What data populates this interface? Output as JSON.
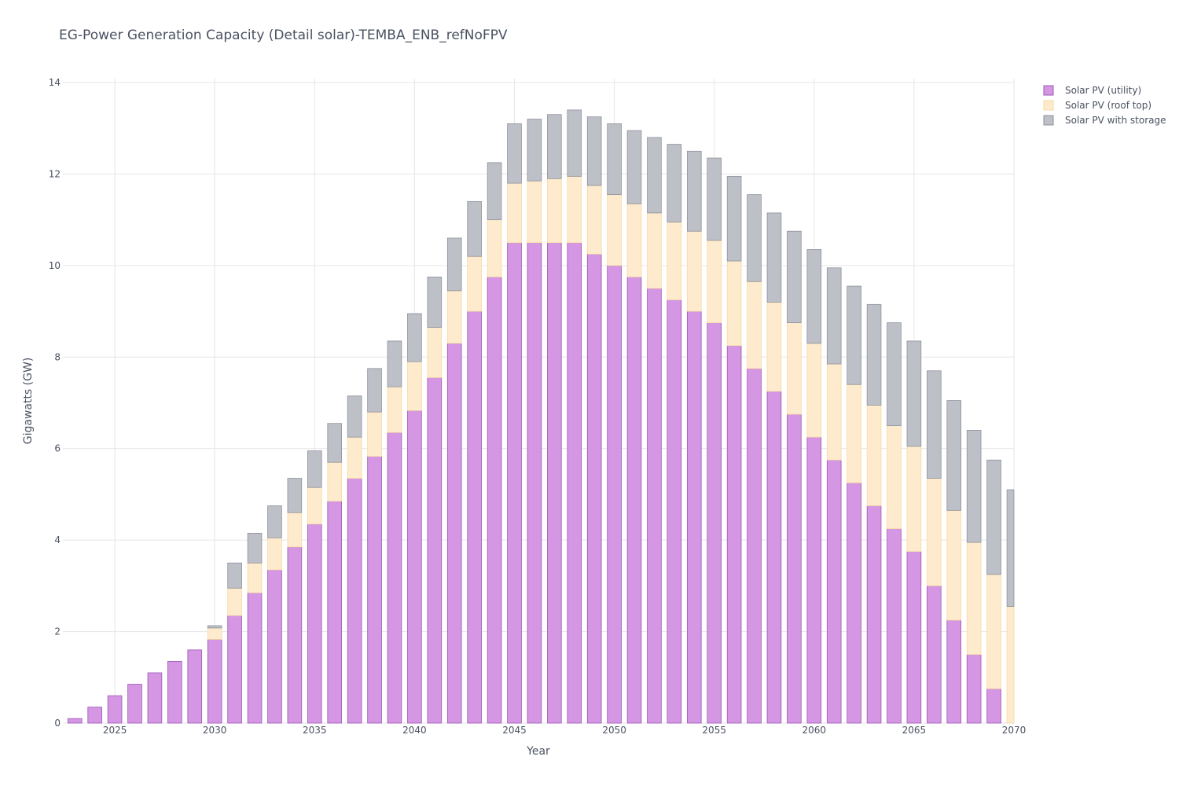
{
  "chart_data": {
    "type": "bar",
    "title": "EG-Power Generation Capacity (Detail solar)-TEMBA_ENB_refNoFPV",
    "xlabel": "Year",
    "ylabel": "Gigawatts (GW)",
    "barmode": "stacked",
    "ylim": [
      0,
      14
    ],
    "xlim": [
      2022.4,
      2070
    ],
    "x_ticks": [
      2025,
      2030,
      2035,
      2040,
      2045,
      2050,
      2055,
      2060,
      2065,
      2070
    ],
    "y_ticks": [
      0,
      2,
      4,
      6,
      8,
      10,
      12,
      14
    ],
    "grid": true,
    "legend_position": "top-right",
    "x": [
      2023,
      2024,
      2025,
      2026,
      2027,
      2028,
      2029,
      2030,
      2031,
      2032,
      2033,
      2034,
      2035,
      2036,
      2037,
      2038,
      2039,
      2040,
      2041,
      2042,
      2043,
      2044,
      2045,
      2046,
      2047,
      2048,
      2049,
      2050,
      2051,
      2052,
      2053,
      2054,
      2055,
      2056,
      2057,
      2058,
      2059,
      2060,
      2061,
      2062,
      2063,
      2064,
      2065,
      2066,
      2067,
      2068,
      2069,
      2070
    ],
    "series": [
      {
        "name": "Solar PV (utility)",
        "color": "#d596e4",
        "stroke": "#9b59b6",
        "values": [
          0.1,
          0.35,
          0.6,
          0.85,
          1.1,
          1.35,
          1.6,
          1.83,
          2.35,
          2.85,
          3.35,
          3.85,
          4.35,
          4.85,
          5.35,
          5.83,
          6.35,
          6.83,
          7.55,
          8.3,
          9.0,
          9.75,
          10.5,
          10.5,
          10.5,
          10.5,
          10.25,
          10.0,
          9.75,
          9.5,
          9.25,
          9.0,
          8.75,
          8.25,
          7.75,
          7.25,
          6.75,
          6.25,
          5.75,
          5.25,
          4.75,
          4.25,
          3.75,
          3.0,
          2.25,
          1.5,
          0.75,
          0.0
        ]
      },
      {
        "name": "Solar PV (roof top)",
        "color": "#feebcd",
        "stroke": "#f6d9a6",
        "values": [
          0,
          0,
          0,
          0,
          0,
          0,
          0,
          0.25,
          0.6,
          0.65,
          0.7,
          0.75,
          0.8,
          0.85,
          0.9,
          0.97,
          1.0,
          1.07,
          1.1,
          1.15,
          1.2,
          1.25,
          1.3,
          1.35,
          1.4,
          1.45,
          1.5,
          1.55,
          1.6,
          1.65,
          1.7,
          1.75,
          1.8,
          1.85,
          1.9,
          1.95,
          2.0,
          2.05,
          2.1,
          2.15,
          2.2,
          2.25,
          2.3,
          2.35,
          2.4,
          2.45,
          2.5,
          2.55
        ]
      },
      {
        "name": "Solar PV with storage",
        "color": "#bec0c8",
        "stroke": "#8e919d",
        "values": [
          0,
          0,
          0,
          0,
          0,
          0,
          0,
          0.05,
          0.55,
          0.65,
          0.7,
          0.75,
          0.8,
          0.85,
          0.9,
          0.95,
          1.0,
          1.05,
          1.1,
          1.15,
          1.2,
          1.25,
          1.3,
          1.35,
          1.4,
          1.45,
          1.5,
          1.55,
          1.6,
          1.65,
          1.7,
          1.75,
          1.8,
          1.85,
          1.9,
          1.95,
          2.0,
          2.05,
          2.1,
          2.15,
          2.2,
          2.25,
          2.3,
          2.35,
          2.4,
          2.45,
          2.5,
          2.55
        ]
      }
    ]
  }
}
